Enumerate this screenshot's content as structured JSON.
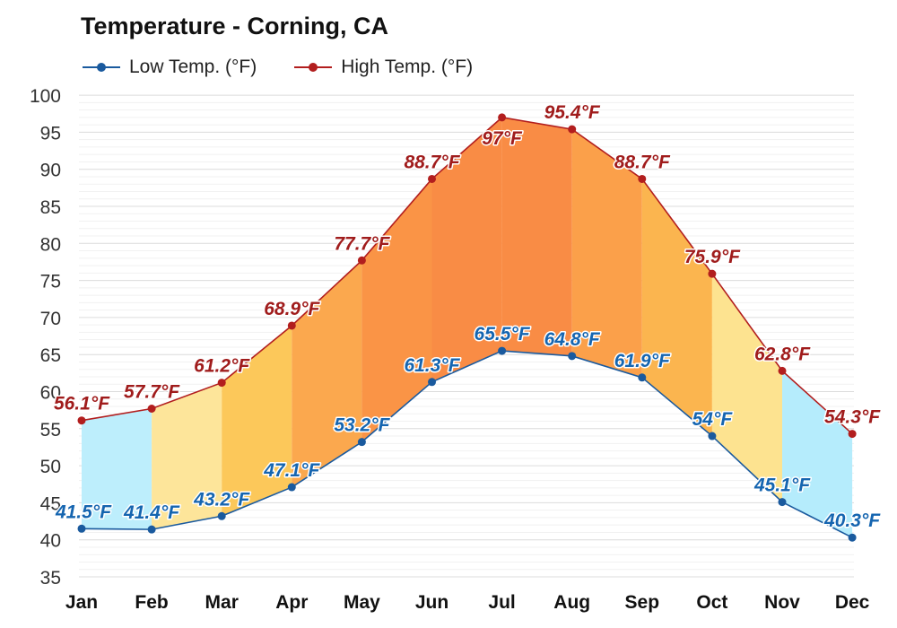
{
  "chart_data": {
    "type": "area",
    "title": "Temperature - Corning, CA",
    "xlabel": "",
    "ylabel": "",
    "categories": [
      "Jan",
      "Feb",
      "Mar",
      "Apr",
      "May",
      "Jun",
      "Jul",
      "Aug",
      "Sep",
      "Oct",
      "Nov",
      "Dec"
    ],
    "series": [
      {
        "name": "Low Temp. (°F)",
        "values": [
          41.5,
          41.4,
          43.2,
          47.1,
          53.2,
          61.3,
          65.5,
          64.8,
          61.9,
          54,
          45.1,
          40.3
        ],
        "labels": [
          "41.5°F",
          "41.4°F",
          "43.2°F",
          "47.1°F",
          "53.2°F",
          "61.3°F",
          "65.5°F",
          "64.8°F",
          "61.9°F",
          "54°F",
          "45.1°F",
          "40.3°F"
        ],
        "color": "#1a5a9e",
        "label_color": "#1565b0"
      },
      {
        "name": "High Temp. (°F)",
        "values": [
          56.1,
          57.7,
          61.2,
          68.9,
          77.7,
          88.7,
          97,
          95.4,
          88.7,
          75.9,
          62.8,
          54.3
        ],
        "labels": [
          "56.1°F",
          "57.7°F",
          "61.2°F",
          "68.9°F",
          "77.7°F",
          "88.7°F",
          "97°F",
          "95.4°F",
          "88.7°F",
          "75.9°F",
          "62.8°F",
          "54.3°F"
        ],
        "color": "#b21e1e",
        "label_color": "#a01c1c"
      }
    ],
    "ylim": [
      35,
      100
    ],
    "yticks": [
      35,
      40,
      45,
      50,
      55,
      60,
      65,
      70,
      75,
      80,
      85,
      90,
      95,
      100
    ],
    "grid": true,
    "legend": "top-left",
    "band_colors": [
      "#bdeefc",
      "#fde59a",
      "#fcc85a",
      "#fba84e",
      "#fa9446",
      "#f98c45",
      "#f98c45",
      "#fba04a",
      "#fbb54f",
      "#fde390",
      "#b5ecfc"
    ]
  }
}
